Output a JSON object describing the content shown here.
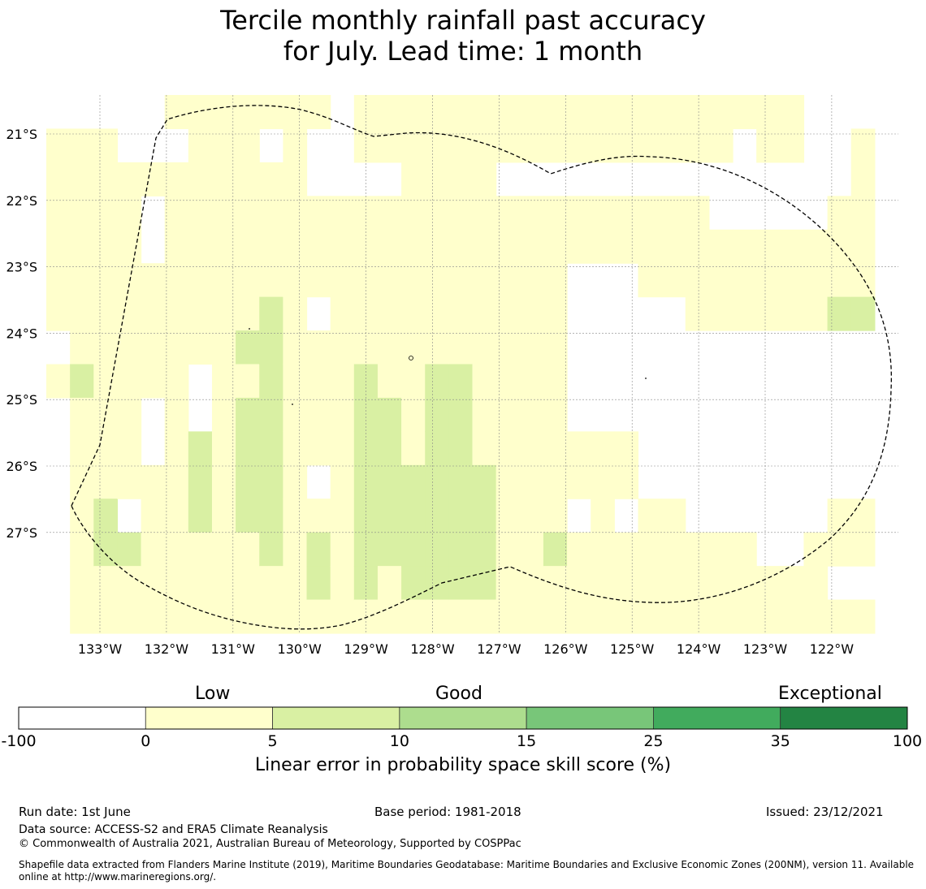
{
  "title": {
    "line1": "Tercile monthly rainfall past accuracy",
    "line2": "for July. Lead time: 1 month"
  },
  "map": {
    "x_ticks": [
      "133°W",
      "132°W",
      "131°W",
      "130°W",
      "129°W",
      "128°W",
      "127°W",
      "126°W",
      "125°W",
      "124°W",
      "123°W",
      "122°W"
    ],
    "y_ticks": [
      "21°S",
      "22°S",
      "23°S",
      "24°S",
      "25°S",
      "26°S",
      "27°S"
    ],
    "grid": true,
    "boundary_style": "dashed",
    "colors": {
      "lt0": "#ffffff",
      "b0_5": "#ffffcc",
      "b5_10": "#d9f0a3",
      "b10_15": "#addd8e",
      "b15_25": "#78c679",
      "b25_35": "#41ab5d",
      "b35_100": "#238443"
    },
    "cells": [
      "0111111010000000",
      "0111111121111111",
      "0111111111112211",
      "0011111111110211",
      "0010011110011111",
      "1011111111111111",
      "1111111100222111",
      "1111111111111111",
      "1111111212222111",
      "1011112222222211",
      "1111111111111111",
      "1001110111101221",
      "0001111111111111",
      "1101111122222221",
      "1101111112222211",
      "1111111111122221",
      "1111111122222221",
      "1111111122222221",
      "1111111111122221",
      "1101111111111111",
      "1101111111111111",
      "1101111111111211",
      "1101100000110111",
      "1101100000111111",
      "1101100000110111",
      "1101110000001111",
      "1101110000001111",
      "1101111000000111",
      "1100111000000111",
      "1000111000000111",
      "1100111000000011",
      "1100111000000011",
      "0000111000000111",
      "0001112000001101",
      "0111112000001101",
      "0000000000000000"
    ]
  },
  "colorbar": {
    "classes": [
      "Low",
      "Good",
      "Exceptional"
    ],
    "ticks": [
      "-100",
      "0",
      "5",
      "10",
      "15",
      "25",
      "35",
      "100"
    ],
    "colors": [
      "#ffffff",
      "#ffffcc",
      "#d9f0a3",
      "#addd8e",
      "#78c679",
      "#41ab5d",
      "#238443"
    ],
    "label": "Linear error in probability space skill score (%)"
  },
  "footer": {
    "run_date": "Run date: 1st June",
    "base_period": "Base period: 1981-2018",
    "issued": "Issued: 23/12/2021",
    "data_source": "Data source: ACCESS-S2 and ERA5 Climate Reanalysis",
    "copyright": "© Commonwealth of Australia 2021, Australian Bureau of Meteorology, Supported by COSPPac",
    "shapefile_line1": "Shapefile data extracted from Flanders Marine Institute (2019), Maritime Boundaries Geodatabase: Maritime Boundaries and Exclusive Economic Zones (200NM), version 11. Available",
    "shapefile_line2": "online at http://www.marineregions.org/."
  }
}
